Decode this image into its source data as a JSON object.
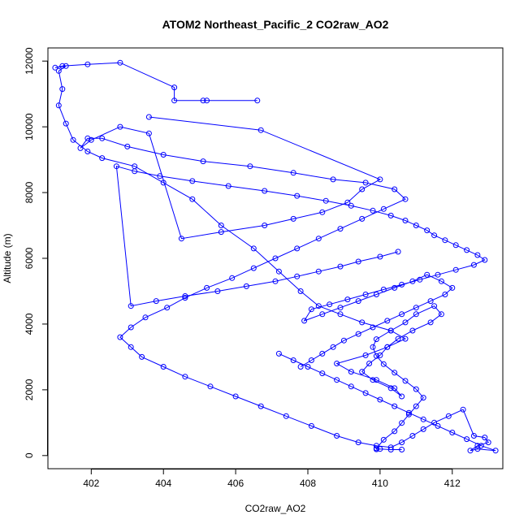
{
  "chart_data": {
    "type": "line",
    "title": "ATOM2 Northeast_Pacific_2 CO2raw_AO2",
    "xlabel": "CO2raw_AO2",
    "ylabel": "Altitude (m)",
    "xlim": [
      400.8,
      413.4
    ],
    "ylim": [
      -400,
      12400
    ],
    "xticks": [
      402,
      404,
      406,
      408,
      410,
      412
    ],
    "yticks": [
      0,
      2000,
      4000,
      6000,
      8000,
      10000,
      12000
    ],
    "marker": "open-circle",
    "grid": false,
    "color": "#0000ff",
    "series": [
      {
        "x": [
          410.6,
          410.3,
          410.0,
          409.9,
          409.9,
          410.1,
          410.4,
          410.6,
          410.8,
          411.0,
          411.2,
          411.0,
          410.7,
          410.4,
          410.1,
          409.9,
          409.8,
          409.9,
          410.3,
          410.7,
          411.0,
          411.5,
          411.7,
          411.4,
          410.9,
          410.5,
          410.2,
          410.0,
          409.7,
          409.5,
          409.8,
          410.3,
          410.6,
          410.4,
          409.9,
          409.2,
          408.8,
          409.6,
          410.2,
          410.7,
          410.3,
          409.5,
          408.9,
          408.3,
          407.8,
          407.2,
          406.5,
          405.6,
          404.8,
          404.0,
          403.2,
          402.3,
          401.9,
          401.5,
          401.3,
          401.1,
          401.2,
          401.1,
          401.3,
          401.0,
          401.2,
          401.9,
          402.8,
          404.3,
          404.3,
          405.1,
          405.2,
          406.6
        ],
        "y": [
          180,
          180,
          200,
          190,
          220,
          480,
          740,
          990,
          1250,
          1500,
          1760,
          2020,
          2270,
          2520,
          2780,
          3030,
          3300,
          3540,
          3800,
          4050,
          4300,
          4550,
          4300,
          4050,
          3800,
          3550,
          3300,
          3050,
          2800,
          2550,
          2300,
          2050,
          1800,
          2050,
          2300,
          2550,
          2800,
          3050,
          3300,
          3550,
          3800,
          4050,
          4300,
          4550,
          5000,
          5600,
          6300,
          7000,
          7800,
          8300,
          8800,
          9050,
          9250,
          9600,
          10100,
          10650,
          11150,
          11700,
          11850,
          11800,
          11850,
          11900,
          11950,
          11200,
          10800,
          10800,
          10800,
          10800
        ]
      },
      {
        "x": [
          403.6,
          406.7,
          410.0,
          409.5,
          409.1,
          408.4,
          407.6,
          406.8,
          405.6,
          404.5,
          403.6,
          402.8,
          402.0,
          401.7,
          401.9,
          402.3,
          403.0,
          404.0,
          405.1,
          406.4,
          407.6,
          408.7,
          409.6,
          410.4,
          410.7,
          410.1,
          409.5,
          408.9,
          408.3,
          407.7,
          407.1,
          406.5,
          405.9,
          405.2,
          404.6,
          404.1,
          403.5,
          403.1,
          402.8,
          403.1,
          403.4,
          404.0,
          404.6,
          405.3,
          406.0,
          406.7,
          407.4,
          408.1,
          408.8,
          409.4,
          409.9,
          410.3,
          410.6,
          410.9,
          411.2,
          411.5,
          411.9,
          412.3,
          412.6,
          412.9,
          413.0,
          412.7,
          412.5,
          412.7,
          413.2,
          412.8,
          412.4,
          412.0,
          411.6,
          411.2,
          410.8,
          410.4,
          410.0,
          409.6,
          409.2,
          408.8,
          408.4,
          408.0,
          407.6,
          407.2
        ],
        "y": [
          10300,
          9900,
          8400,
          8100,
          7700,
          7400,
          7200,
          7000,
          6800,
          6600,
          9800,
          10000,
          9600,
          9350,
          9650,
          9650,
          9400,
          9150,
          8950,
          8800,
          8600,
          8400,
          8300,
          8100,
          7800,
          7500,
          7200,
          6900,
          6600,
          6300,
          6000,
          5700,
          5400,
          5100,
          4800,
          4500,
          4200,
          3900,
          3600,
          3300,
          3000,
          2700,
          2400,
          2100,
          1800,
          1500,
          1200,
          900,
          600,
          400,
          300,
          250,
          400,
          600,
          800,
          1000,
          1200,
          1400,
          600,
          550,
          400,
          300,
          150,
          200,
          150,
          300,
          500,
          700,
          900,
          1100,
          1300,
          1500,
          1700,
          1900,
          2100,
          2300,
          2500,
          2700,
          2900,
          3100
        ]
      },
      {
        "x": [
          410.5,
          410.0,
          409.4,
          408.9,
          408.3,
          407.7,
          407.1,
          406.3,
          405.5,
          404.6,
          403.8,
          403.1,
          402.7,
          403.2,
          403.9,
          404.8,
          405.8,
          406.8,
          407.7,
          408.5,
          409.2,
          409.8,
          410.3,
          410.7,
          411.0,
          411.3,
          411.5,
          411.8,
          412.1,
          412.4,
          412.7,
          412.9,
          412.6,
          412.1,
          411.6,
          411.1,
          410.6,
          410.1,
          409.6,
          409.1,
          408.6,
          408.1,
          407.9,
          408.4,
          408.9,
          409.4,
          409.9,
          410.4,
          410.9,
          411.3,
          411.7,
          412.0,
          411.8,
          411.4,
          411.0,
          410.6,
          410.2,
          409.8,
          409.4,
          409.0,
          408.7,
          408.4,
          408.1,
          407.8
        ],
        "y": [
          6200,
          6050,
          5900,
          5750,
          5600,
          5450,
          5300,
          5150,
          5000,
          4850,
          4700,
          4550,
          8800,
          8650,
          8500,
          8350,
          8200,
          8050,
          7900,
          7750,
          7600,
          7450,
          7300,
          7150,
          7000,
          6850,
          6700,
          6550,
          6400,
          6250,
          6100,
          5950,
          5800,
          5650,
          5500,
          5350,
          5200,
          5050,
          4900,
          4750,
          4600,
          4450,
          4100,
          4300,
          4500,
          4700,
          4900,
          5100,
          5300,
          5500,
          5300,
          5100,
          4900,
          4700,
          4500,
          4300,
          4100,
          3900,
          3700,
          3500,
          3300,
          3100,
          2900,
          2700
        ]
      }
    ]
  }
}
